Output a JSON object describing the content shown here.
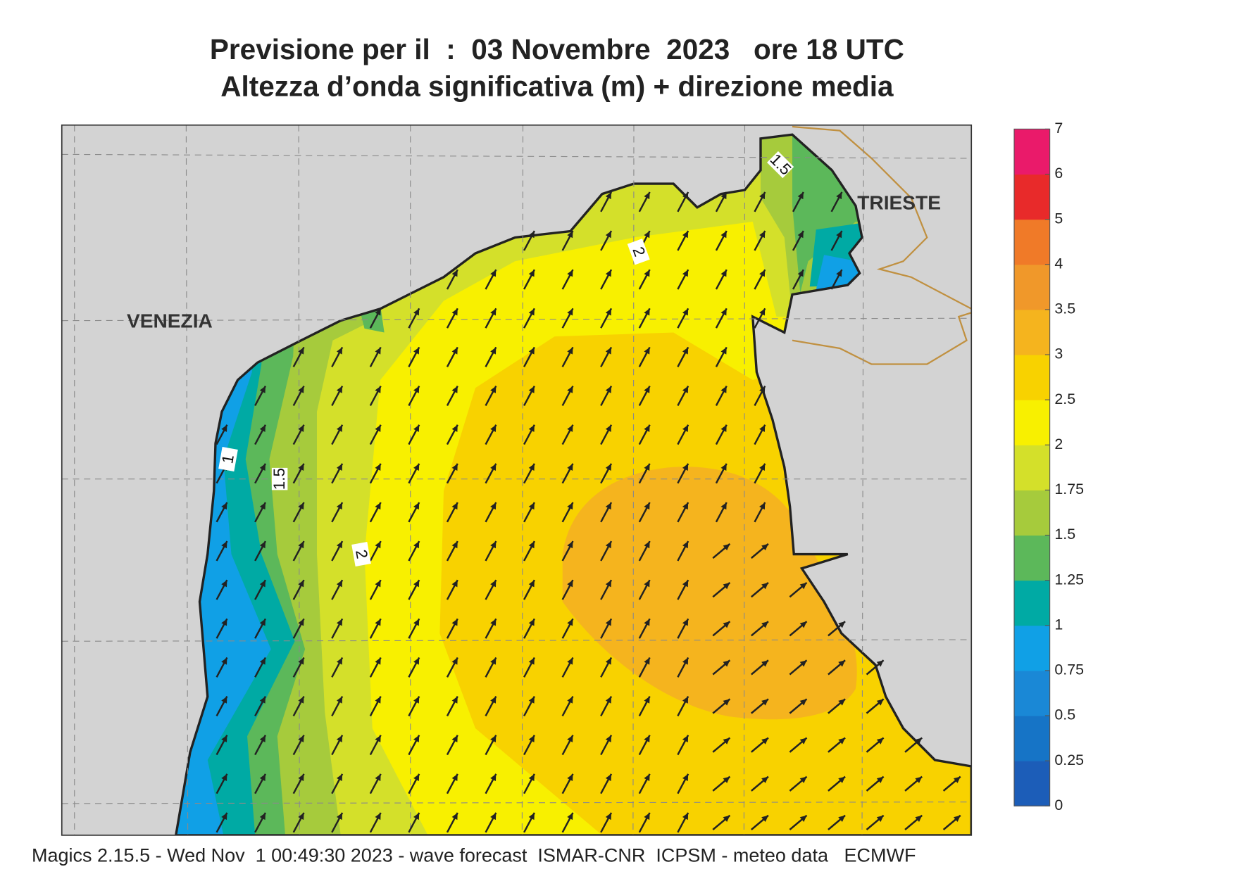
{
  "title": "Previsione per il  :  03 Novembre  2023   ore 18 UTC",
  "subtitle": "Altezza d’onda significativa (m) + direzione media",
  "map": {
    "places": [
      "VENEZIA",
      "TRIESTE"
    ],
    "contour_labels": [
      1,
      1.5,
      2,
      2,
      1.5
    ]
  },
  "colorbar": {
    "ticks": [
      0,
      0.25,
      0.5,
      0.75,
      1,
      1.25,
      1.5,
      1.75,
      2,
      2.5,
      3,
      3.5,
      4,
      5,
      6,
      7
    ],
    "colors": [
      "#1c5db8",
      "#1674c6",
      "#1a88d6",
      "#10a0e6",
      "#00aaa4",
      "#5cb85a",
      "#a6cb3c",
      "#d4e02a",
      "#f8f000",
      "#f8d200",
      "#f5b41e",
      "#f0982a",
      "#f07a28",
      "#e82a2a",
      "#ea1a6a"
    ]
  },
  "footer": "Magics 2.15.5 - Wed Nov  1 00:49:30 2023 - wave forecast  ISMAR-CNR  ICPSM - meteo data   ECMWF"
}
